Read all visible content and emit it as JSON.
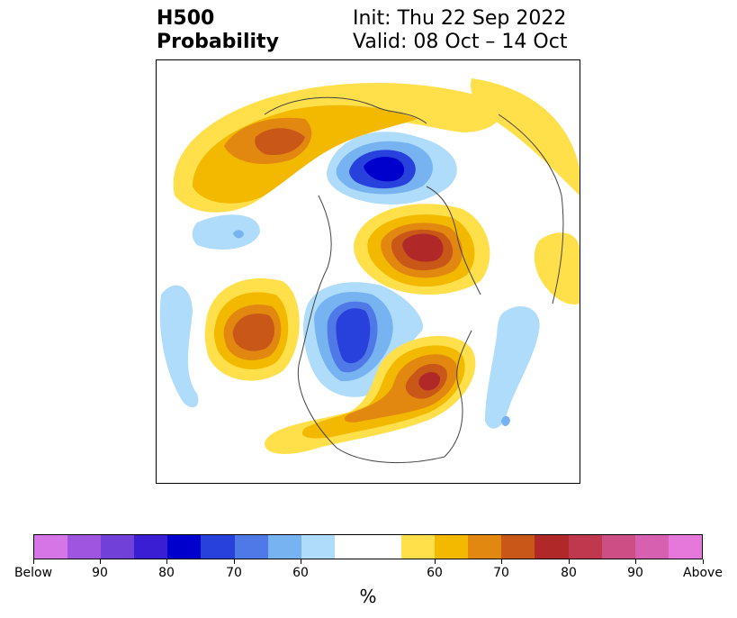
{
  "header": {
    "title": "H500\nProbability",
    "init": "Init: Thu 22 Sep 2022",
    "valid": "Valid: 08 Oct – 14 Oct"
  },
  "map": {
    "description_icon": "map-icon"
  },
  "colorbar": {
    "colors": [
      "#d675e6",
      "#a055e0",
      "#7040d8",
      "#3a1ed4",
      "#0000cc",
      "#2840dc",
      "#4f79e6",
      "#77b3f0",
      "#aedcfa",
      "#ffffff",
      "#ffe04a",
      "#f3b800",
      "#e2870f",
      "#c85718",
      "#b02828",
      "#c0384e",
      "#cc4e84",
      "#d860b0",
      "#e678dc"
    ],
    "ticks": [
      "Below",
      "90",
      "80",
      "70",
      "60",
      "60",
      "70",
      "80",
      "90",
      "Above"
    ],
    "label": "%"
  }
}
